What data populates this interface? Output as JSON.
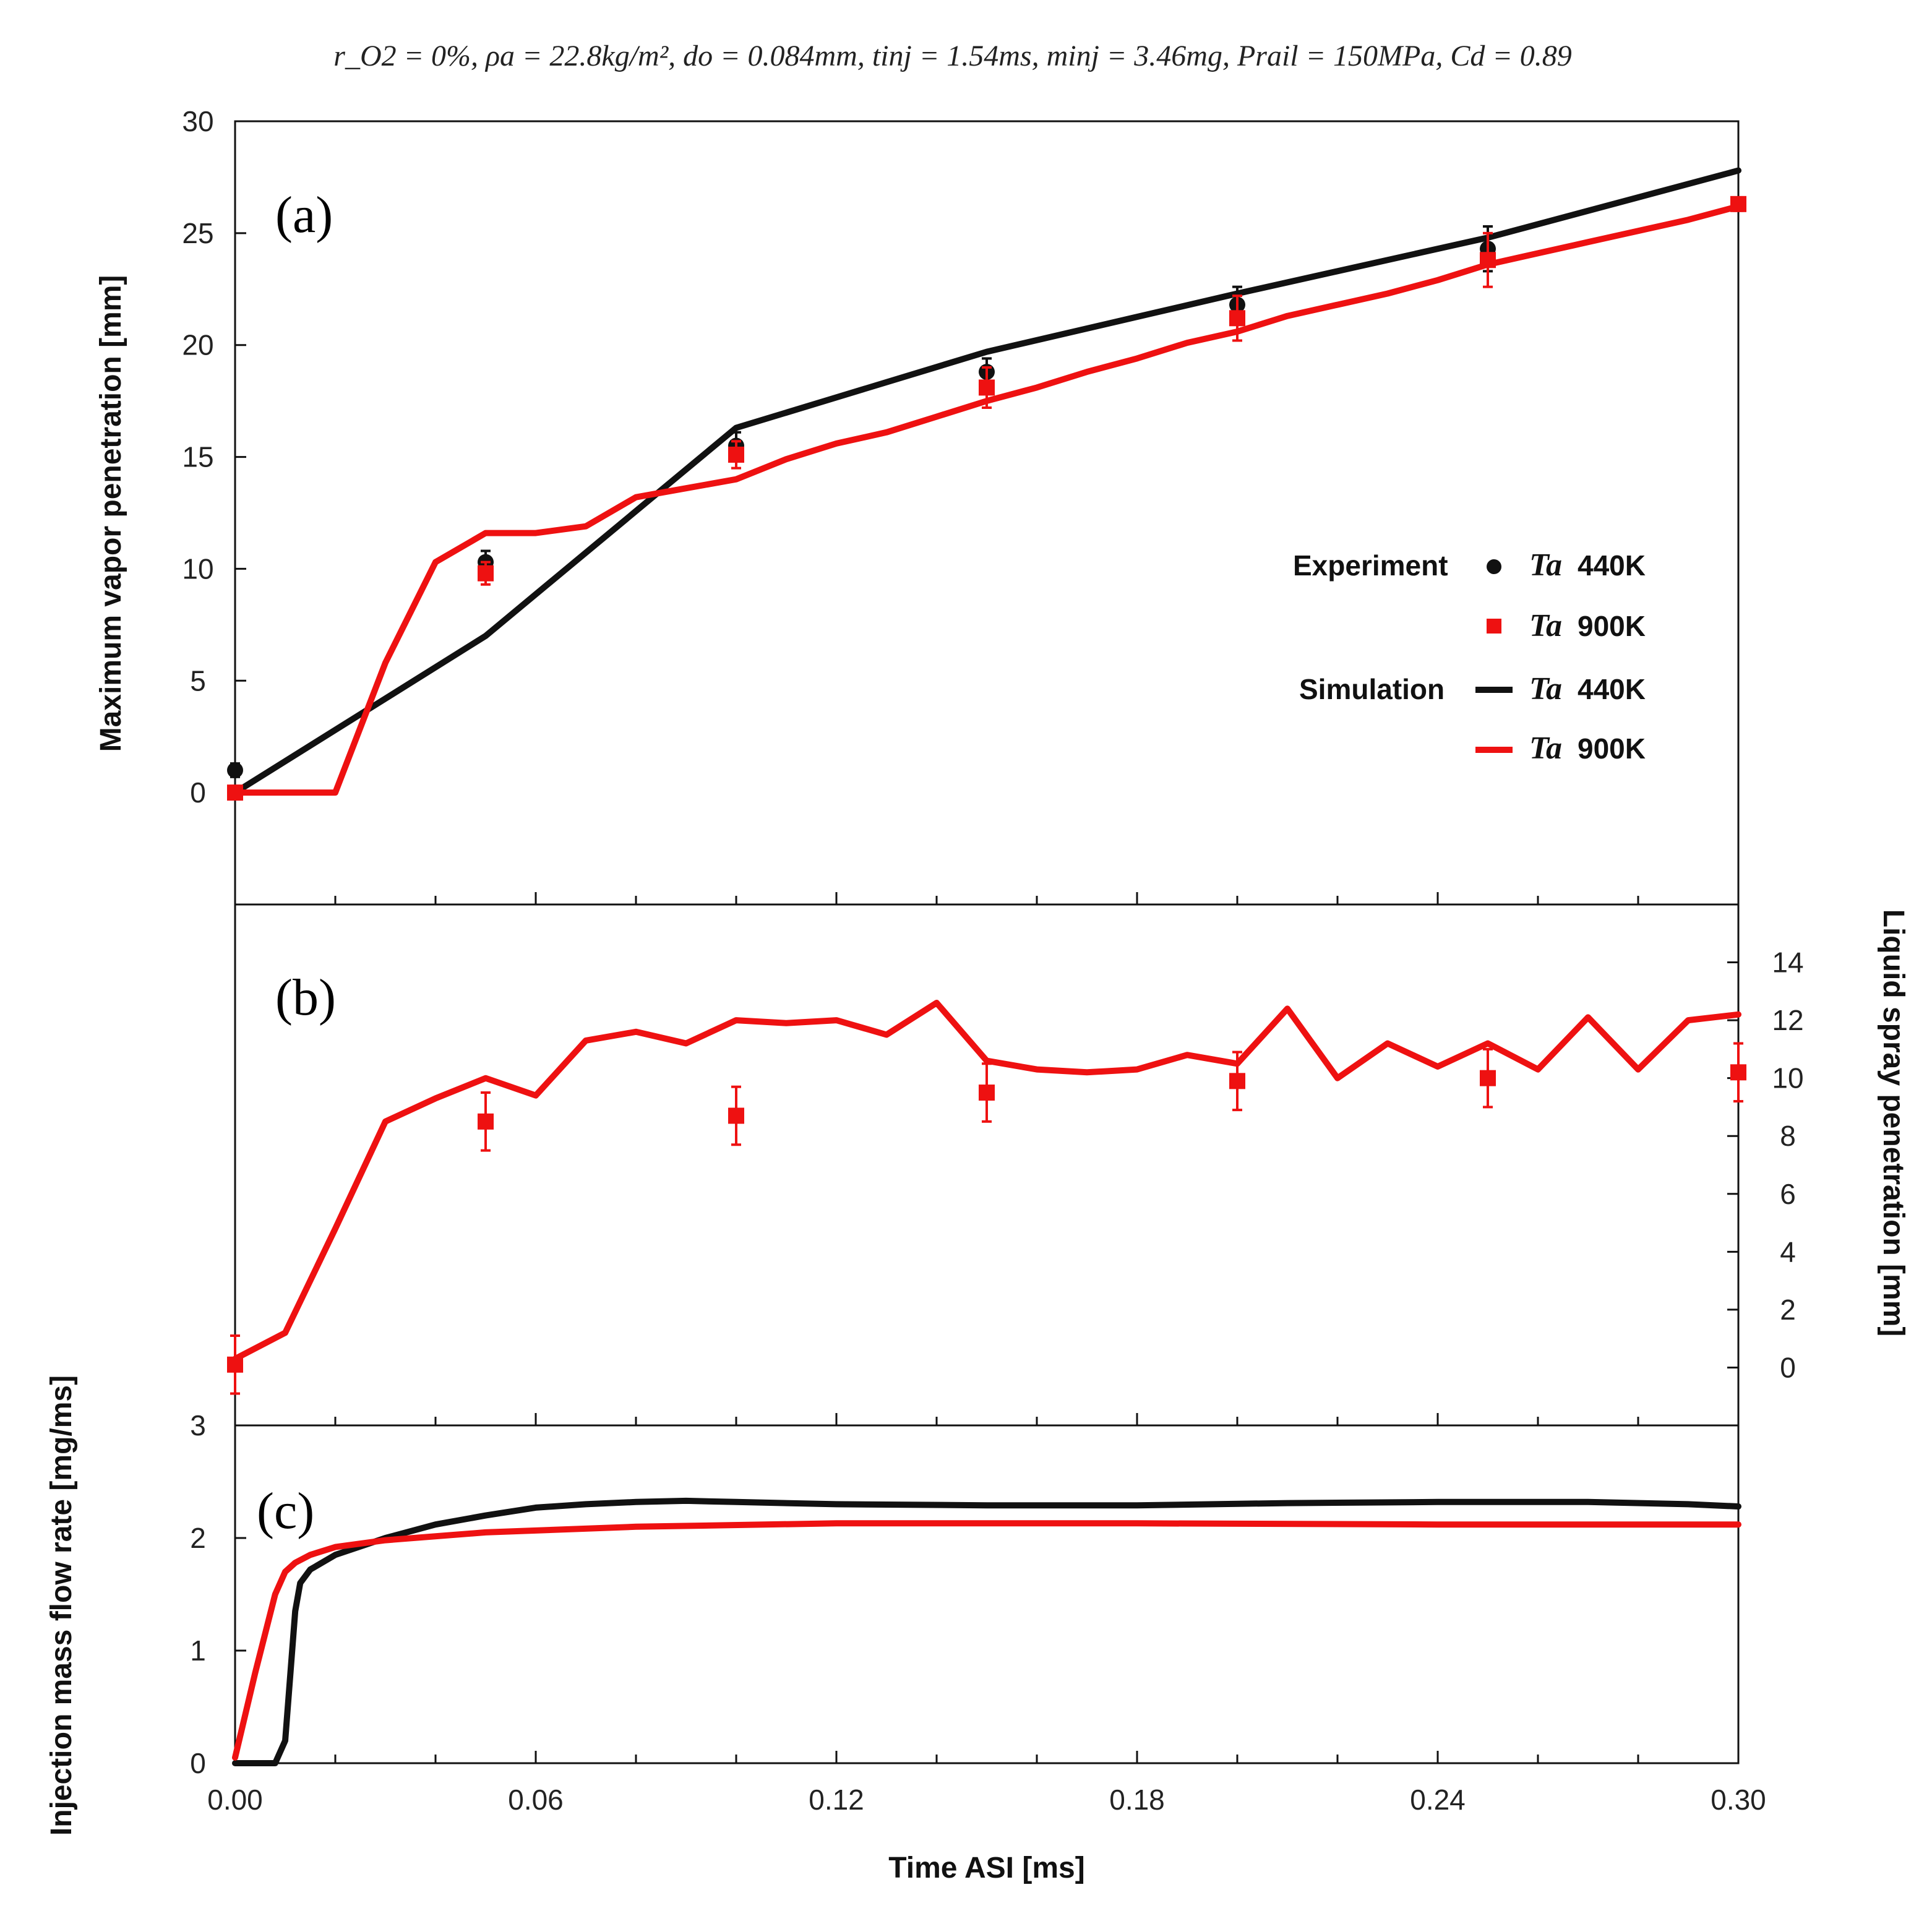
{
  "chart_data": {
    "type": "line",
    "title": "r_O2 = 0%, ρa = 22.8kg/m², do = 0.084mm, tinj = 1.54ms, minj = 3.46mg, Prail = 150MPa, Cd = 0.89",
    "xlabel": "Time ASI [ms]",
    "xlim": [
      0,
      0.3
    ],
    "xticks": [
      "0.00",
      "0.06",
      "0.12",
      "0.18",
      "0.24",
      "0.30"
    ],
    "colors": {
      "t440": "#111111",
      "t900": "#ee1111"
    },
    "panels": [
      {
        "id": "a",
        "label": "(a)",
        "ylabel": "Maximum vapor penetration [mm]",
        "ylim": [
          -5,
          30
        ],
        "yticks": [
          "0",
          "5",
          "10",
          "15",
          "20",
          "25",
          "30"
        ],
        "series": [
          {
            "name": "Simulation Ta 440K",
            "kind": "line",
            "color_key": "t440",
            "x": [
              0.0,
              0.05,
              0.1,
              0.15,
              0.2,
              0.25,
              0.3
            ],
            "y": [
              0.0,
              7.0,
              16.3,
              19.7,
              22.3,
              24.8,
              27.8
            ]
          },
          {
            "name": "Simulation Ta 900K",
            "kind": "line",
            "color_key": "t900",
            "x": [
              0.0,
              0.02,
              0.03,
              0.04,
              0.05,
              0.06,
              0.07,
              0.08,
              0.09,
              0.1,
              0.11,
              0.12,
              0.13,
              0.14,
              0.15,
              0.16,
              0.17,
              0.18,
              0.19,
              0.2,
              0.21,
              0.22,
              0.23,
              0.24,
              0.25,
              0.26,
              0.27,
              0.28,
              0.29,
              0.3
            ],
            "y": [
              0.0,
              0.0,
              5.8,
              10.3,
              11.6,
              11.6,
              11.9,
              13.2,
              13.6,
              14.0,
              14.9,
              15.6,
              16.1,
              16.8,
              17.5,
              18.1,
              18.8,
              19.4,
              20.1,
              20.6,
              21.3,
              21.8,
              22.3,
              22.9,
              23.6,
              24.1,
              24.6,
              25.1,
              25.6,
              26.2
            ]
          },
          {
            "name": "Experiment Ta 440K",
            "kind": "points",
            "marker": "circle",
            "color_key": "t440",
            "x": [
              0.0,
              0.05,
              0.1,
              0.15,
              0.2,
              0.25
            ],
            "y": [
              1.0,
              10.3,
              15.5,
              18.8,
              21.8,
              24.3
            ],
            "err": [
              0.3,
              0.5,
              0.6,
              0.6,
              0.8,
              1.0
            ]
          },
          {
            "name": "Experiment Ta 900K",
            "kind": "points",
            "marker": "square",
            "color_key": "t900",
            "x": [
              0.0,
              0.05,
              0.1,
              0.15,
              0.2,
              0.25,
              0.3
            ],
            "y": [
              0.0,
              9.8,
              15.1,
              18.1,
              21.2,
              23.8,
              26.3
            ],
            "err": [
              0.3,
              0.5,
              0.6,
              0.9,
              1.0,
              1.2,
              0.3
            ]
          }
        ]
      },
      {
        "id": "b",
        "label": "(b)",
        "ylabel": "Liquid spray penetration [mm]",
        "ylim": [
          -2,
          16
        ],
        "yticks": [
          "0",
          "2",
          "4",
          "6",
          "8",
          "10",
          "12",
          "14"
        ],
        "axis_side": "right",
        "series": [
          {
            "name": "Simulation Ta 900K",
            "kind": "line",
            "color_key": "t900",
            "x": [
              0.0,
              0.01,
              0.02,
              0.03,
              0.04,
              0.05,
              0.06,
              0.07,
              0.08,
              0.09,
              0.1,
              0.11,
              0.12,
              0.13,
              0.14,
              0.15,
              0.16,
              0.17,
              0.18,
              0.19,
              0.2,
              0.21,
              0.22,
              0.23,
              0.24,
              0.25,
              0.26,
              0.27,
              0.28,
              0.29,
              0.3
            ],
            "y": [
              0.3,
              1.2,
              4.8,
              8.5,
              9.3,
              10.0,
              9.4,
              11.3,
              11.6,
              11.2,
              12.0,
              11.9,
              12.0,
              11.5,
              12.6,
              10.6,
              10.3,
              10.2,
              10.3,
              10.8,
              10.5,
              12.4,
              10.0,
              11.2,
              10.4,
              11.2,
              10.3,
              12.1,
              10.3,
              12.0,
              12.2
            ]
          },
          {
            "name": "Experiment Ta 900K",
            "kind": "points",
            "marker": "square",
            "color_key": "t900",
            "x": [
              0.0,
              0.05,
              0.1,
              0.15,
              0.2,
              0.25,
              0.3
            ],
            "y": [
              0.1,
              8.5,
              8.7,
              9.5,
              9.9,
              10.0,
              10.2
            ],
            "err": [
              1.0,
              1.0,
              1.0,
              1.0,
              1.0,
              1.0,
              1.0
            ]
          }
        ]
      },
      {
        "id": "c",
        "label": "(c)",
        "ylabel": "Injection mass flow rate [mg/ms]",
        "ylim": [
          0,
          3
        ],
        "yticks": [
          "0",
          "1",
          "2",
          "3"
        ],
        "series": [
          {
            "name": "Simulation Ta 440K",
            "kind": "line",
            "color_key": "t440",
            "x": [
              0.0,
              0.008,
              0.01,
              0.012,
              0.013,
              0.015,
              0.02,
              0.03,
              0.04,
              0.05,
              0.06,
              0.07,
              0.08,
              0.09,
              0.1,
              0.12,
              0.15,
              0.18,
              0.21,
              0.24,
              0.27,
              0.29,
              0.3
            ],
            "y": [
              0.0,
              0.0,
              0.2,
              1.35,
              1.6,
              1.72,
              1.85,
              2.0,
              2.12,
              2.2,
              2.27,
              2.3,
              2.32,
              2.33,
              2.32,
              2.3,
              2.29,
              2.29,
              2.31,
              2.32,
              2.32,
              2.3,
              2.28
            ]
          },
          {
            "name": "Simulation Ta 900K",
            "kind": "line",
            "color_key": "t900",
            "x": [
              0.0,
              0.004,
              0.008,
              0.01,
              0.012,
              0.015,
              0.02,
              0.03,
              0.05,
              0.08,
              0.12,
              0.18,
              0.24,
              0.3
            ],
            "y": [
              0.05,
              0.8,
              1.5,
              1.7,
              1.78,
              1.85,
              1.92,
              1.98,
              2.05,
              2.1,
              2.13,
              2.13,
              2.12,
              2.12
            ]
          }
        ]
      }
    ],
    "legend": {
      "items": [
        {
          "group": "Experiment",
          "symbol": "Ta",
          "label": "440K",
          "marker": "circle",
          "color_key": "t440"
        },
        {
          "group": "",
          "symbol": "Ta",
          "label": "900K",
          "marker": "square",
          "color_key": "t900"
        },
        {
          "group": "Simulation",
          "symbol": "Ta",
          "label": "440K",
          "marker": "line",
          "color_key": "t440"
        },
        {
          "group": "",
          "symbol": "Ta",
          "label": "900K",
          "marker": "line",
          "color_key": "t900"
        }
      ]
    }
  }
}
